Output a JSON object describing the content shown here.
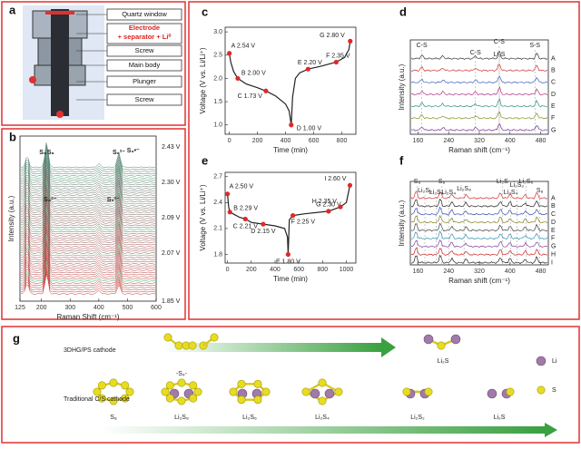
{
  "panel_labels": [
    "a",
    "b",
    "c",
    "d",
    "e",
    "f",
    "g"
  ],
  "schematic": {
    "labels": [
      "Quartz window",
      "Electrode",
      "+ separator + Li⁰",
      "Screw",
      "Main body",
      "Plunger",
      "Screw"
    ]
  },
  "chart_data": [
    {
      "type": "waterfall",
      "xlabel": "Raman Shift (cm⁻¹)",
      "ylabel": "Intensity (a.u.)",
      "xlim": [
        125,
        600
      ],
      "xticks": [
        125,
        200,
        300,
        400,
        500,
        600
      ],
      "side_labels": [
        "2.43 V",
        "2.30 V",
        "2.09 V",
        "2.07 V",
        "1.85 V"
      ],
      "annotations": [
        "S₈",
        "S₈",
        "S₈²⁻",
        "S₆²⁻",
        "S₈²⁻",
        "S₃•⁻"
      ]
    },
    {
      "type": "line",
      "xlabel": "Time (min)",
      "ylabel": "Voltage (V vs. Li/Li⁺)",
      "xlim": [
        -30,
        900
      ],
      "xticks": [
        0,
        200,
        400,
        600,
        800
      ],
      "ylim": [
        0.8,
        3.1
      ],
      "yticks": [
        {
          "value": 1.0,
          "label": "1.0"
        },
        {
          "value": 1.5,
          "label": "1.5"
        },
        {
          "value": 2.0,
          "label": "2.0"
        },
        {
          "value": 2.5,
          "label": "2.5"
        },
        {
          "value": 3.0,
          "label": "3.0"
        }
      ],
      "x": [
        0,
        10,
        30,
        60,
        120,
        200,
        260,
        330,
        400,
        425,
        440,
        450,
        470,
        500,
        560,
        650,
        760,
        820,
        850,
        860
      ],
      "values": [
        2.54,
        2.35,
        2.15,
        2.0,
        1.88,
        1.8,
        1.73,
        1.62,
        1.45,
        1.3,
        1.0,
        1.6,
        2.0,
        2.12,
        2.2,
        2.26,
        2.35,
        2.45,
        2.62,
        2.8
      ],
      "color": "#222222",
      "points": {
        "color": "#e02828",
        "x": [
          0,
          60,
          260,
          440,
          560,
          760,
          860
        ],
        "values": [
          2.54,
          2.0,
          1.73,
          1.0,
          2.2,
          2.35,
          2.8
        ],
        "value_labels": [
          "A 2.54 V",
          "B 2.00 V",
          "C 1.73 V",
          "D 1.00 V",
          "E 2.20 V",
          "F 2.35 V",
          "G 2.80 V"
        ]
      }
    },
    {
      "type": "spectra",
      "xlabel": "Raman shift (cm⁻¹)",
      "ylabel": "Intensity (a.u.)",
      "xlim": [
        140,
        500
      ],
      "xticks": [
        160,
        240,
        320,
        400,
        480
      ],
      "annotations": [
        "C-S",
        "C-S",
        "C-S",
        "Li₂S",
        "S-S"
      ],
      "series": [
        {
          "name": "A",
          "color": "#333333"
        },
        {
          "name": "B",
          "color": "#d03030"
        },
        {
          "name": "C",
          "color": "#4060c0"
        },
        {
          "name": "D",
          "color": "#b03080"
        },
        {
          "name": "E",
          "color": "#309080"
        },
        {
          "name": "F",
          "color": "#809020"
        },
        {
          "name": "G",
          "color": "#703090"
        }
      ]
    },
    {
      "type": "line",
      "xlabel": "Time (min)",
      "ylabel": "Voltage (V vs. Li/Li⁺)",
      "xlim": [
        -20,
        1080
      ],
      "xticks": [
        0,
        200,
        400,
        600,
        800,
        1000
      ],
      "ylim": [
        1.7,
        2.75
      ],
      "yticks": [
        1.8,
        2.1,
        2.4,
        2.7
      ],
      "x": [
        0,
        10,
        20,
        60,
        100,
        150,
        200,
        300,
        400,
        480,
        505,
        510,
        520,
        550,
        650,
        850,
        950,
        1000,
        1030
      ],
      "values": [
        2.5,
        2.35,
        2.29,
        2.26,
        2.23,
        2.21,
        2.17,
        2.15,
        2.13,
        2.1,
        2.0,
        1.8,
        2.2,
        2.25,
        2.27,
        2.3,
        2.35,
        2.4,
        2.6
      ],
      "color": "#222222",
      "points": {
        "color": "#e02828",
        "x": [
          0,
          20,
          150,
          300,
          510,
          550,
          850,
          950,
          1030
        ],
        "values": [
          2.5,
          2.29,
          2.21,
          2.15,
          1.8,
          2.25,
          2.3,
          2.35,
          2.6
        ],
        "value_labels": [
          "A 2.50 V",
          "B 2.29 V",
          "C 2.21 V",
          "D 2.15 V",
          "E 1.80 V",
          "F 2.25 V",
          "G 2.30 V",
          "H 2.35 V",
          "I 2.60 V"
        ]
      }
    },
    {
      "type": "spectra",
      "xlabel": "Raman shift (cm⁻¹)",
      "ylabel": "Intensity (a.u.)",
      "xlim": [
        140,
        500
      ],
      "xticks": [
        160,
        240,
        320,
        400,
        480
      ],
      "annotations": [
        "S₈",
        "Li₂S₈",
        "Li₂S₆",
        "S₈",
        "Li₂S₄",
        "Li₂S₈",
        "Li₂S",
        "Li₂S₄",
        "Li₂S₂",
        "Li₂S₆",
        "S₈"
      ],
      "series": [
        {
          "name": "A",
          "color": "#d03030"
        },
        {
          "name": "B",
          "color": "#222222"
        },
        {
          "name": "C",
          "color": "#3050b0"
        },
        {
          "name": "D",
          "color": "#808020"
        },
        {
          "name": "E",
          "color": "#404040"
        },
        {
          "name": "F",
          "color": "#3090b0"
        },
        {
          "name": "G",
          "color": "#8040a0"
        },
        {
          "name": "H",
          "color": "#d02020"
        },
        {
          "name": "I",
          "color": "#222222"
        }
      ]
    }
  ],
  "scheme": {
    "rows": [
      {
        "label": "3DHG/PS cathode",
        "species": [
          "-S₄-",
          "Li₂S"
        ]
      },
      {
        "label": "Traditional C/S cathode",
        "species": [
          "S₈",
          "Li₂S₈",
          "Li₂S₆",
          "Li₂S₄",
          "Li₂S₂",
          "Li₂S"
        ]
      }
    ],
    "legend": [
      "Li",
      "S"
    ]
  }
}
